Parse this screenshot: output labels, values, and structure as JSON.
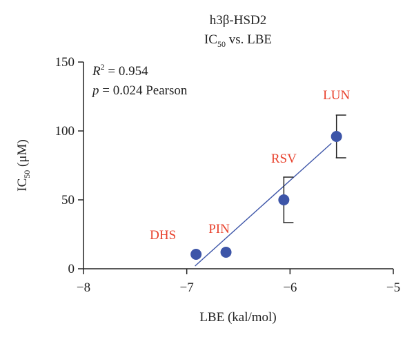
{
  "chart_data": {
    "type": "scatter",
    "title_line1": "h3β-HSD2",
    "title_line2": {
      "prefix": "IC",
      "sub": "50",
      "suffix": " vs. LBE"
    },
    "xlabel": "LBE (kal/mol)",
    "ylabel": {
      "prefix": "IC",
      "sub": "50",
      "suffix": " (μM)"
    },
    "xlim": [
      -8,
      -5
    ],
    "ylim": [
      0,
      150
    ],
    "x_ticks": [
      -8,
      -7,
      -6,
      -5
    ],
    "x_tick_labels": [
      "−8",
      "−7",
      "−6",
      "−5"
    ],
    "y_ticks": [
      0,
      50,
      100,
      150
    ],
    "y_tick_labels": [
      "0",
      "50",
      "100",
      "150"
    ],
    "grid": false,
    "annotation": {
      "r2_symbol": "R",
      "r2_sup": "2",
      "r2_text": " = 0.954",
      "p_symbol": "p",
      "p_text": " = 0.024 Pearson"
    },
    "points": [
      {
        "label": "DHS",
        "x": -6.91,
        "y": 10.5,
        "err": null
      },
      {
        "label": "PIN",
        "x": -6.62,
        "y": 12,
        "err": null
      },
      {
        "label": "RSV",
        "x": -6.06,
        "y": 50,
        "err": 16.5
      },
      {
        "label": "LUN",
        "x": -5.55,
        "y": 96,
        "err": 15.5
      }
    ],
    "fit_line": {
      "x": [
        -6.92,
        -5.6
      ],
      "y": [
        2,
        91
      ]
    },
    "colors": {
      "point": "#3d55a8",
      "line": "#3d55a8",
      "label": "#e8412c",
      "axis": "#222222"
    }
  }
}
